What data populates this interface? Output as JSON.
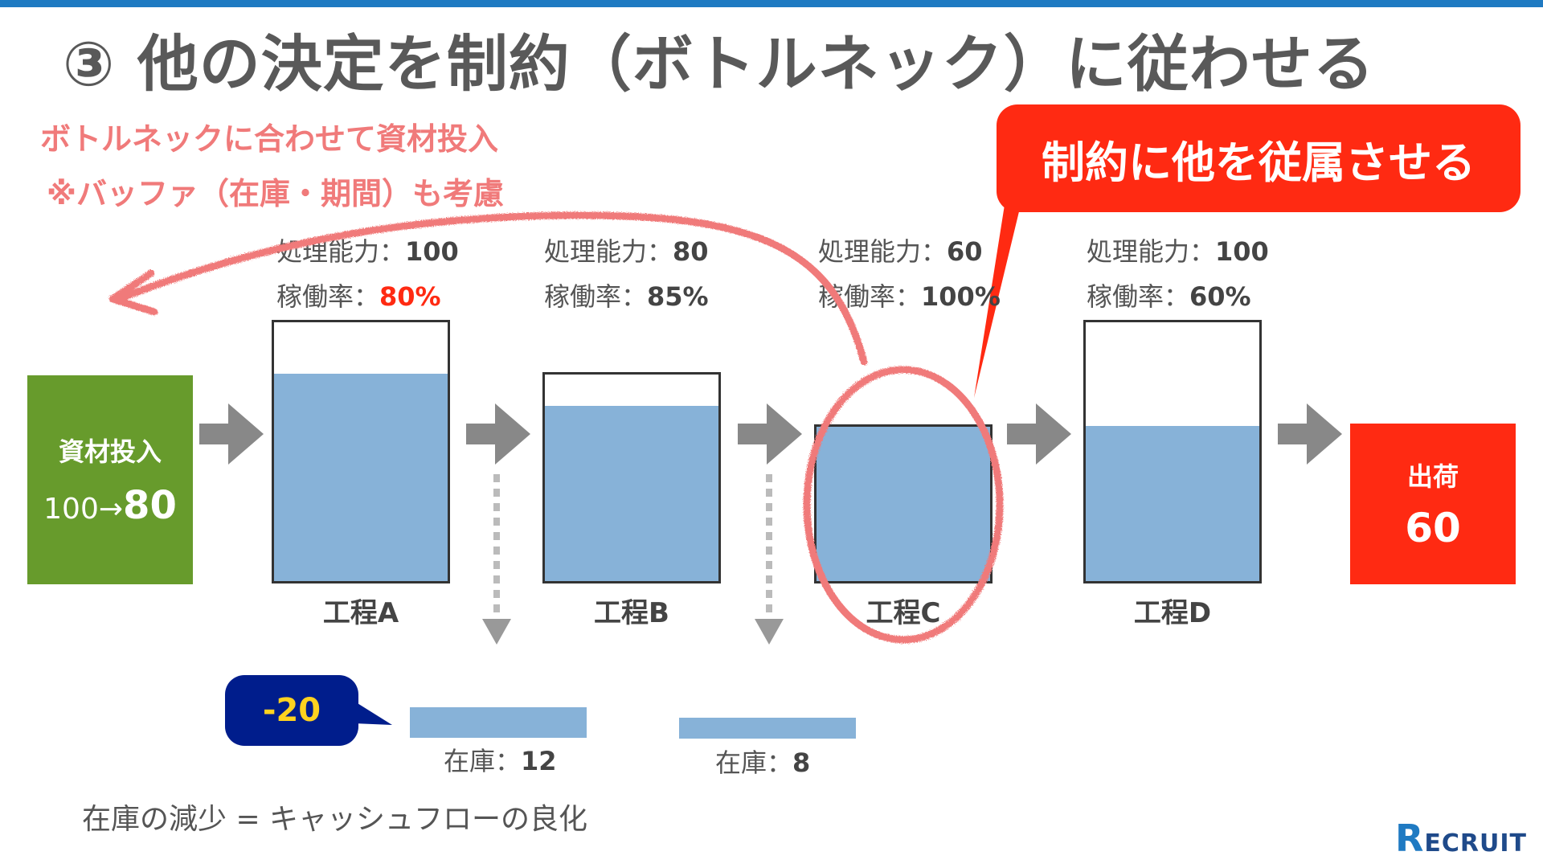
{
  "title": "③ 他の決定を制約（ボトルネック）に従わせる",
  "notes": {
    "line1": "ボトルネックに合わせて資材投入",
    "line2": "※バッファ（在庫・期間）も考慮"
  },
  "callout": "制約に他を従属させる",
  "material_input": {
    "label": "資材投入",
    "before": "100→",
    "after": "80"
  },
  "shipping": {
    "label": "出荷",
    "value": "60"
  },
  "processes": [
    {
      "name": "工程A",
      "capacity_label": "処理能力：",
      "capacity": "100",
      "rate_label": "稼働率：",
      "rate": "80%",
      "rate_color": "#ff2a12",
      "fill": 0.8
    },
    {
      "name": "工程B",
      "capacity_label": "処理能力：",
      "capacity": "80",
      "rate_label": "稼働率：",
      "rate": "85%",
      "rate_color": "#444444",
      "fill": 0.85
    },
    {
      "name": "工程C",
      "capacity_label": "処理能力：",
      "capacity": "60",
      "rate_label": "稼働率：",
      "rate": "100%",
      "rate_color": "#444444",
      "fill": 1.0
    },
    {
      "name": "工程D",
      "capacity_label": "処理能力：",
      "capacity": "100",
      "rate_label": "稼働率：",
      "rate": "60%",
      "rate_color": "#444444",
      "fill": 0.6
    }
  ],
  "inventory": [
    {
      "label": "在庫：",
      "value": "12"
    },
    {
      "label": "在庫：",
      "value": "8"
    }
  ],
  "reduction": "-20",
  "footer": "在庫の減少 =  キャッシュフローの良化",
  "logo": {
    "r": "R",
    "rest": "ECRUIT"
  }
}
